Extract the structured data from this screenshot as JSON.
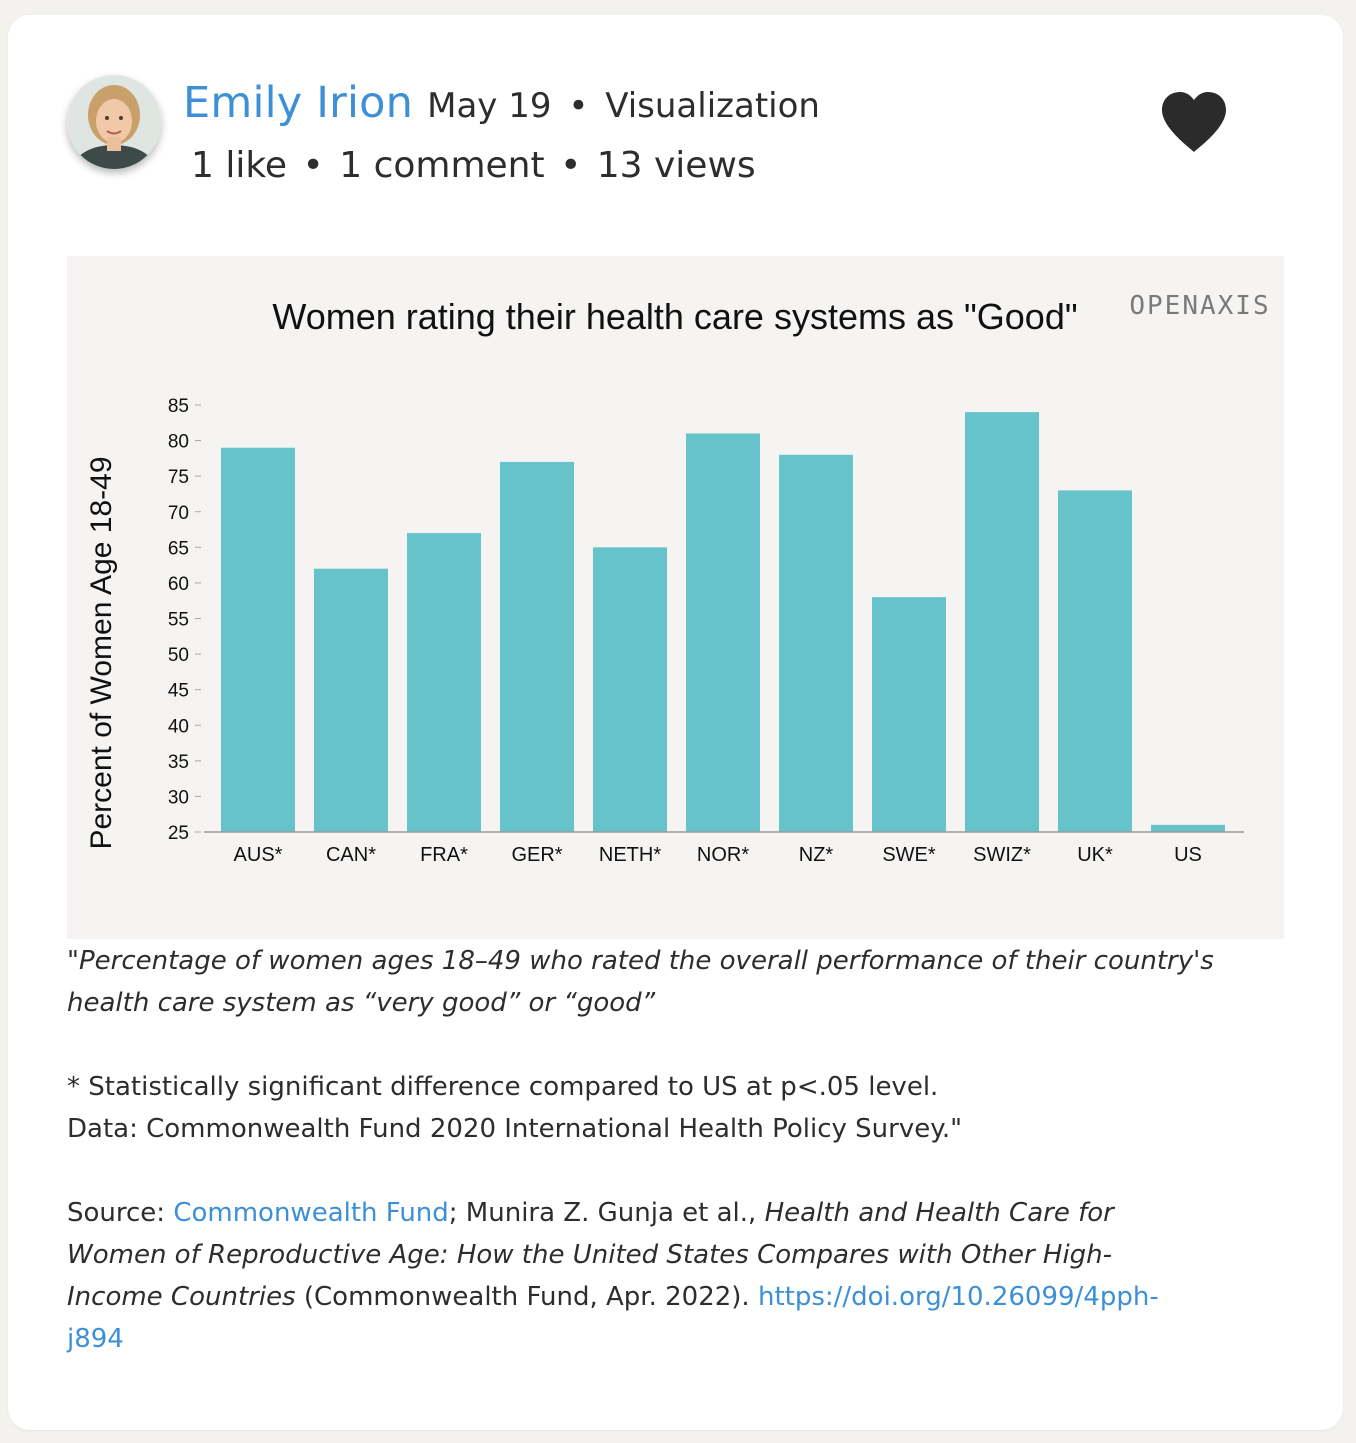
{
  "post": {
    "author": "Emily Irion",
    "date": "May 19",
    "category": "Visualization",
    "separator": "•",
    "likes": "1 like",
    "comments": "1 comment",
    "views": "13 views",
    "icons": {
      "avatar": "avatar-portrait",
      "like": "heart-icon"
    }
  },
  "chart_data": {
    "type": "bar",
    "title": "Women rating their health care systems as \"Good\"",
    "watermark": "OPENAXIS",
    "ylabel": "Percent of Women Age 18-49",
    "xlabel": "",
    "categories": [
      "AUS*",
      "CAN*",
      "FRA*",
      "GER*",
      "NETH*",
      "NOR*",
      "NZ*",
      "SWE*",
      "SWIZ*",
      "UK*",
      "US"
    ],
    "values": [
      79,
      62,
      67,
      77,
      65,
      81,
      78,
      58,
      84,
      73,
      26
    ],
    "ylim": [
      25,
      85
    ],
    "yticks": [
      85,
      80,
      75,
      70,
      65,
      60,
      55,
      50,
      45,
      40,
      35,
      30,
      25
    ],
    "bar_color": "#66c3c9",
    "grid": false,
    "legend": "none"
  },
  "caption": {
    "quote_line1": "\"Percentage of women ages 18–49 who rated the overall performance of their country's",
    "quote_line2": "health care system as “very good” or “good”",
    "note_line1": "* Statistically significant difference compared to US at p<.05 level.",
    "note_line2": "Data: Commonwealth Fund 2020 International Health Policy Survey.\"",
    "source_prefix": "Source: ",
    "source_link": "Commonwealth Fund",
    "source_authors": "; Munira Z. Gunja et al., ",
    "source_title_line1": "Health and Health Care for",
    "source_title_line2": "Women of Reproductive Age: How the United States Compares with Other High-",
    "source_title_line3": "Income Countries",
    "source_publisher": " (Commonwealth Fund, Apr. 2022). ",
    "doi_line1": "https://doi.org/10.26099/4pph-",
    "doi_line2": "j894"
  }
}
